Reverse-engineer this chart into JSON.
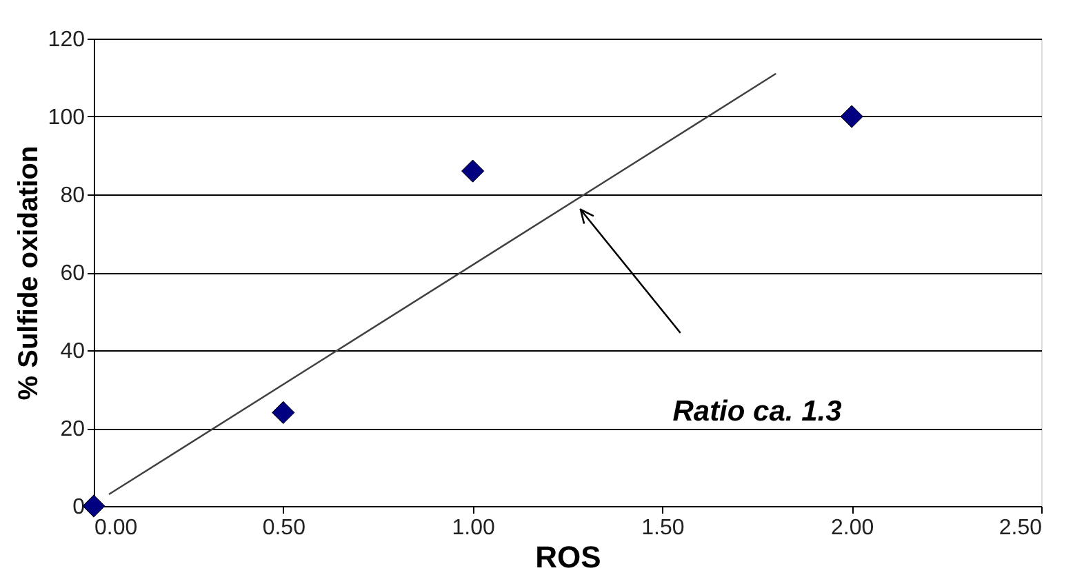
{
  "chart_data": {
    "type": "scatter",
    "xlabel": "ROS",
    "ylabel": "% Sulfide oxidation",
    "xlim": [
      0,
      2.5
    ],
    "ylim": [
      0,
      120
    ],
    "xticks": [
      {
        "value": 0,
        "label": "0.00"
      },
      {
        "value": 0.5,
        "label": "0.50"
      },
      {
        "value": 1,
        "label": "1.00"
      },
      {
        "value": 1.5,
        "label": "1.50"
      },
      {
        "value": 2,
        "label": "2.00"
      },
      {
        "value": 2.5,
        "label": "2.50"
      }
    ],
    "yticks": [
      0,
      20,
      40,
      60,
      80,
      100,
      120
    ],
    "grid": "y",
    "marker": "diamond",
    "series": [
      {
        "color": "#000080",
        "x": [
          0,
          0.5,
          1,
          2
        ],
        "values": [
          0,
          24,
          86,
          100
        ]
      },
      {
        "type": "line",
        "color": "#404040",
        "marker": "none",
        "line_style": "solid",
        "x": [
          0.04,
          1.8
        ],
        "values": [
          3,
          111
        ]
      }
    ],
    "annotations": [
      "Ratio ca. 1.3"
    ]
  }
}
